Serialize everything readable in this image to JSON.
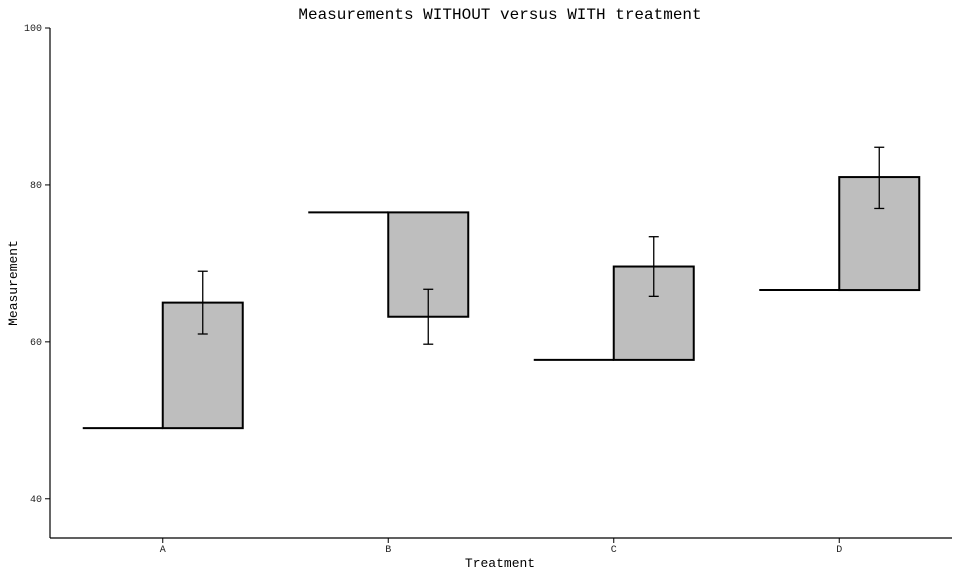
{
  "chart_data": {
    "type": "bar",
    "title": "Measurements WITHOUT versus WITH treatment",
    "xlabel": "Treatment",
    "ylabel": "Measurement",
    "ylim": [
      35,
      100
    ],
    "yticks": [
      40,
      60,
      80,
      100
    ],
    "ytick_labels": [
      "40",
      "60",
      "80",
      "100"
    ],
    "categories": [
      "A",
      "B",
      "C",
      "D"
    ],
    "series": [
      {
        "values": [
          49,
          76.5,
          57.7,
          66.6
        ]
      },
      {
        "values": [
          65,
          63.2,
          69.6,
          81
        ]
      }
    ],
    "error_bars": {
      "low": [
        61,
        59.7,
        65.8,
        77
      ],
      "high": [
        69,
        66.7,
        73.4,
        84.8
      ]
    },
    "grid": false,
    "colors": {
      "bar_fill": "#bebebe",
      "bar_stroke": "#000000",
      "axis": "#000000"
    }
  }
}
